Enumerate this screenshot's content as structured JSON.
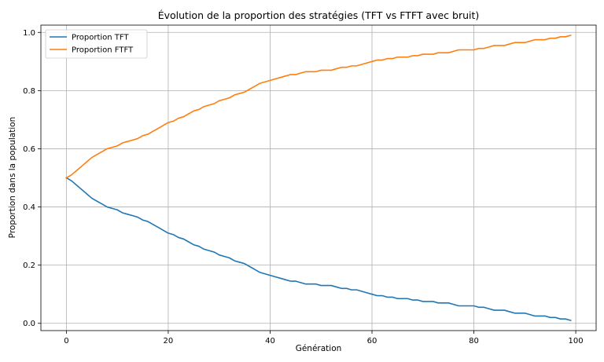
{
  "chart_data": {
    "type": "line",
    "title": "Évolution de la proportion des stratégies (TFT vs FTFT avec bruit)",
    "xlabel": "Génération",
    "ylabel": "Proportion dans la population",
    "xlim": [
      -5,
      104
    ],
    "ylim": [
      -0.025,
      1.025
    ],
    "xticks": [
      0,
      20,
      40,
      60,
      80,
      100
    ],
    "yticks": [
      0.0,
      0.2,
      0.4,
      0.6,
      0.8,
      1.0
    ],
    "xtick_labels": [
      "0",
      "20",
      "40",
      "60",
      "80",
      "100"
    ],
    "ytick_labels": [
      "0.0",
      "0.2",
      "0.4",
      "0.6",
      "0.8",
      "1.0"
    ],
    "grid": true,
    "legend_position": "top-left",
    "x": [
      0,
      1,
      2,
      3,
      4,
      5,
      6,
      7,
      8,
      9,
      10,
      11,
      12,
      13,
      14,
      15,
      16,
      17,
      18,
      19,
      20,
      21,
      22,
      23,
      24,
      25,
      26,
      27,
      28,
      29,
      30,
      31,
      32,
      33,
      34,
      35,
      36,
      37,
      38,
      39,
      40,
      41,
      42,
      43,
      44,
      45,
      46,
      47,
      48,
      49,
      50,
      51,
      52,
      53,
      54,
      55,
      56,
      57,
      58,
      59,
      60,
      61,
      62,
      63,
      64,
      65,
      66,
      67,
      68,
      69,
      70,
      71,
      72,
      73,
      74,
      75,
      76,
      77,
      78,
      79,
      80,
      81,
      82,
      83,
      84,
      85,
      86,
      87,
      88,
      89,
      90,
      91,
      92,
      93,
      94,
      95,
      96,
      97,
      98,
      99
    ],
    "series": [
      {
        "name": "Proportion TFT",
        "color": "#1f77b4",
        "values": [
          0.5,
          0.49,
          0.475,
          0.46,
          0.445,
          0.43,
          0.42,
          0.41,
          0.4,
          0.395,
          0.39,
          0.38,
          0.375,
          0.37,
          0.365,
          0.355,
          0.35,
          0.34,
          0.33,
          0.32,
          0.31,
          0.305,
          0.295,
          0.29,
          0.28,
          0.27,
          0.265,
          0.255,
          0.25,
          0.245,
          0.235,
          0.23,
          0.225,
          0.215,
          0.21,
          0.205,
          0.195,
          0.185,
          0.175,
          0.17,
          0.165,
          0.16,
          0.155,
          0.15,
          0.145,
          0.145,
          0.14,
          0.135,
          0.135,
          0.135,
          0.13,
          0.13,
          0.13,
          0.125,
          0.12,
          0.12,
          0.115,
          0.115,
          0.11,
          0.105,
          0.1,
          0.095,
          0.095,
          0.09,
          0.09,
          0.085,
          0.085,
          0.085,
          0.08,
          0.08,
          0.075,
          0.075,
          0.075,
          0.07,
          0.07,
          0.07,
          0.065,
          0.06,
          0.06,
          0.06,
          0.06,
          0.055,
          0.055,
          0.05,
          0.045,
          0.045,
          0.045,
          0.04,
          0.035,
          0.035,
          0.035,
          0.03,
          0.025,
          0.025,
          0.025,
          0.02,
          0.02,
          0.015,
          0.015,
          0.01
        ]
      },
      {
        "name": "Proportion FTFT",
        "color": "#ff7f0e",
        "values": [
          0.5,
          0.51,
          0.525,
          0.54,
          0.555,
          0.57,
          0.58,
          0.59,
          0.6,
          0.605,
          0.61,
          0.62,
          0.625,
          0.63,
          0.635,
          0.645,
          0.65,
          0.66,
          0.67,
          0.68,
          0.69,
          0.695,
          0.705,
          0.71,
          0.72,
          0.73,
          0.735,
          0.745,
          0.75,
          0.755,
          0.765,
          0.77,
          0.775,
          0.785,
          0.79,
          0.795,
          0.805,
          0.815,
          0.825,
          0.83,
          0.835,
          0.84,
          0.845,
          0.85,
          0.855,
          0.855,
          0.86,
          0.865,
          0.865,
          0.865,
          0.87,
          0.87,
          0.87,
          0.875,
          0.88,
          0.88,
          0.885,
          0.885,
          0.89,
          0.895,
          0.9,
          0.905,
          0.905,
          0.91,
          0.91,
          0.915,
          0.915,
          0.915,
          0.92,
          0.92,
          0.925,
          0.925,
          0.925,
          0.93,
          0.93,
          0.93,
          0.935,
          0.94,
          0.94,
          0.94,
          0.94,
          0.945,
          0.945,
          0.95,
          0.955,
          0.955,
          0.955,
          0.96,
          0.965,
          0.965,
          0.965,
          0.97,
          0.975,
          0.975,
          0.975,
          0.98,
          0.98,
          0.985,
          0.985,
          0.99
        ]
      }
    ]
  }
}
